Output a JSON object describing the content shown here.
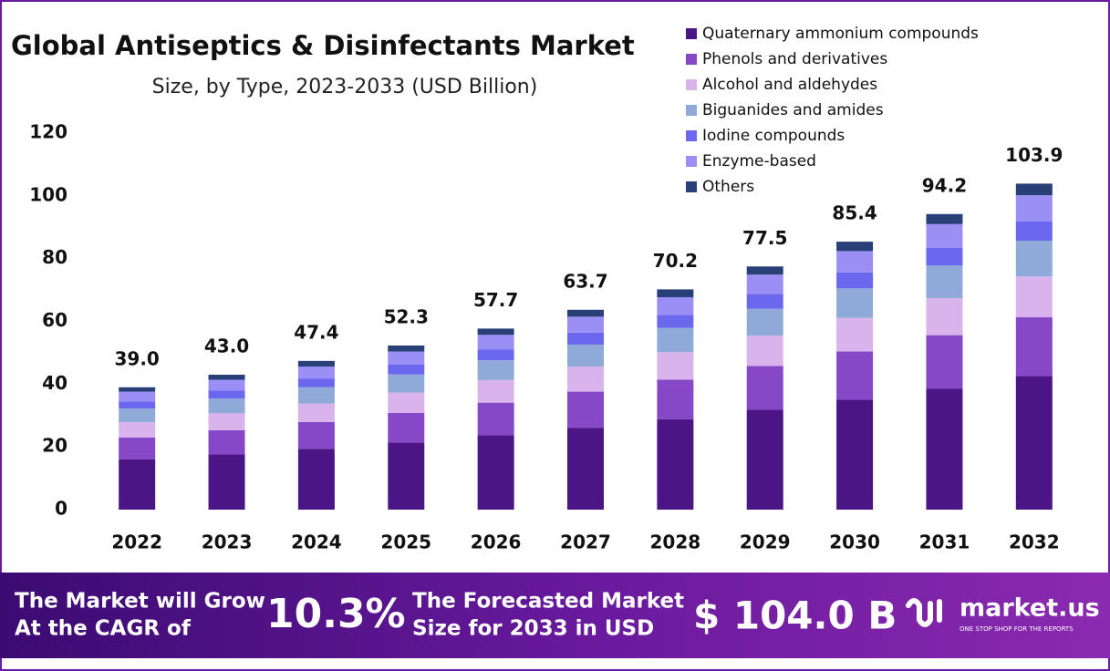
{
  "chart_data": {
    "type": "bar",
    "stacked": true,
    "title": "Global Antiseptics & Disinfectants Market",
    "subtitle": "Size, by Type, 2023-2033 (USD Billion)",
    "categories": [
      "2022",
      "2023",
      "2024",
      "2025",
      "2026",
      "2027",
      "2028",
      "2029",
      "2030",
      "2031",
      "2032"
    ],
    "series": [
      {
        "name": "Quaternary ammonium compounds",
        "color": "#4b1585",
        "values": [
          16.0,
          17.6,
          19.4,
          21.4,
          23.7,
          26.1,
          28.8,
          31.8,
          35.0,
          38.6,
          42.6
        ]
      },
      {
        "name": "Phenols and derivatives",
        "color": "#8748c8",
        "values": [
          7.0,
          7.7,
          8.5,
          9.4,
          10.4,
          11.5,
          12.6,
          14.0,
          15.4,
          17.0,
          18.7
        ]
      },
      {
        "name": "Alcohol and aldehydes",
        "color": "#d9b4ec",
        "values": [
          4.9,
          5.4,
          5.9,
          6.5,
          7.2,
          8.0,
          8.8,
          9.7,
          10.7,
          11.8,
          13.0
        ]
      },
      {
        "name": "Biguanides and amides",
        "color": "#8faad8",
        "values": [
          4.3,
          4.7,
          5.2,
          5.8,
          6.3,
          7.0,
          7.7,
          8.5,
          9.4,
          10.4,
          11.4
        ]
      },
      {
        "name": "Iodine compounds",
        "color": "#6b68ef",
        "values": [
          2.3,
          2.6,
          2.8,
          3.1,
          3.5,
          3.8,
          4.2,
          4.7,
          5.1,
          5.7,
          6.2
        ]
      },
      {
        "name": "Enzyme-based",
        "color": "#9b8ef4",
        "values": [
          3.1,
          3.4,
          3.8,
          4.2,
          4.6,
          5.1,
          5.6,
          6.2,
          6.8,
          7.5,
          8.3
        ]
      },
      {
        "name": "Others",
        "color": "#293f78",
        "values": [
          1.4,
          1.6,
          1.8,
          1.9,
          2.0,
          2.2,
          2.5,
          2.6,
          3.0,
          3.2,
          3.7
        ]
      }
    ],
    "totals": [
      39.0,
      43.0,
      47.4,
      52.3,
      57.7,
      63.7,
      70.2,
      77.5,
      85.4,
      94.2,
      103.9
    ],
    "total_labels": [
      "39.0",
      "43.0",
      "47.4",
      "52.3",
      "57.7",
      "63.7",
      "70.2",
      "77.5",
      "85.4",
      "94.2",
      "103.9"
    ],
    "ylim": [
      0,
      120
    ],
    "yticks": [
      0,
      20,
      40,
      60,
      80,
      100,
      120
    ],
    "grid": false,
    "legend": "top-right"
  },
  "banner": {
    "cagr_text": [
      "The Market will Grow",
      "At the CAGR of"
    ],
    "cagr": "10.3%",
    "forecast_text": [
      "The Forecasted Market",
      "Size for 2033 in USD"
    ],
    "forecast": "$ 104.0 B",
    "brand": "market.us",
    "tagline": "ONE STOP SHOP FOR THE REPORTS"
  }
}
